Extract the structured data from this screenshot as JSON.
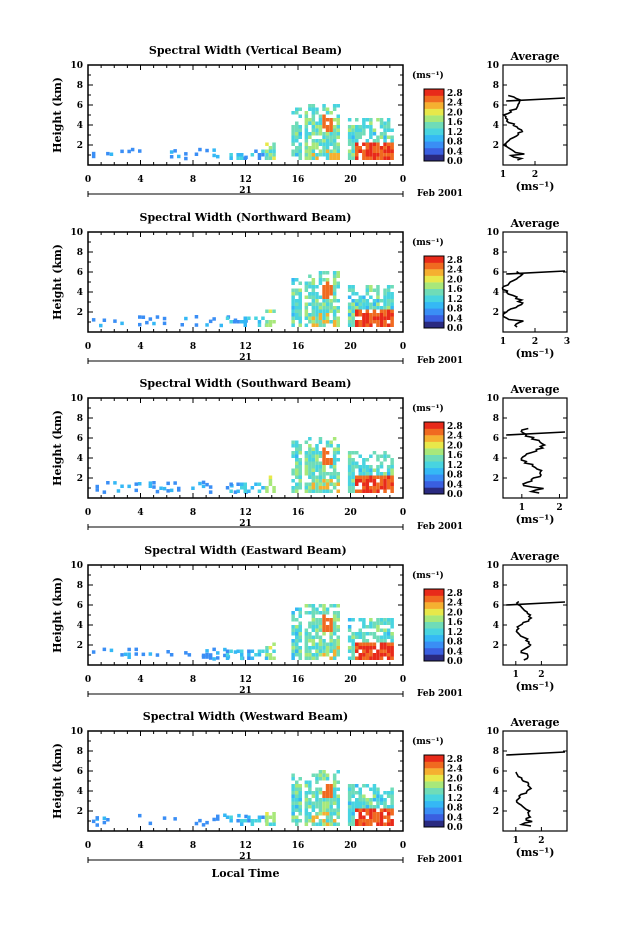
{
  "chart_data": [
    {
      "type": "heatmap",
      "title": "Spectral Width (Vertical Beam)",
      "ylabel": "Height (km)",
      "ylim": [
        0,
        10
      ],
      "xlim": [
        0,
        24
      ],
      "x_ticks": [
        "0",
        "4",
        "8",
        "12",
        "16",
        "20",
        "0"
      ],
      "y_ticks": [
        "2",
        "4",
        "6",
        "8",
        "10"
      ],
      "date_day": "21",
      "date_label": "Feb 2001",
      "colorbar_unit": "(ms⁻¹)",
      "colorbar_ticks": [
        "0.0",
        "0.4",
        "0.8",
        "1.2",
        "1.6",
        "2.0",
        "2.4",
        "2.8"
      ],
      "avg_title": "Average",
      "avg_xlabel": "(ms⁻¹)",
      "avg_xlim": [
        1,
        3
      ],
      "avg_x_ticks": [
        "1",
        "2"
      ],
      "avg_y_ticks": [
        "2",
        "4",
        "6",
        "8",
        "10"
      ]
    },
    {
      "type": "heatmap",
      "title": "Spectral Width (Northward Beam)",
      "ylabel": "Height (km)",
      "ylim": [
        0,
        10
      ],
      "xlim": [
        0,
        24
      ],
      "x_ticks": [
        "0",
        "4",
        "8",
        "12",
        "16",
        "20",
        "0"
      ],
      "y_ticks": [
        "2",
        "4",
        "6",
        "8",
        "10"
      ],
      "date_day": "21",
      "date_label": "Feb 2001",
      "colorbar_unit": "(ms⁻¹)",
      "colorbar_ticks": [
        "0.0",
        "0.4",
        "0.8",
        "1.2",
        "1.6",
        "2.0",
        "2.4",
        "2.8"
      ],
      "avg_title": "Average",
      "avg_xlabel": "(ms⁻¹)",
      "avg_xlim": [
        1,
        3
      ],
      "avg_x_ticks": [
        "1",
        "2",
        "3"
      ],
      "avg_y_ticks": [
        "2",
        "4",
        "6",
        "8",
        "10"
      ]
    },
    {
      "type": "heatmap",
      "title": "Spectral Width (Southward Beam)",
      "ylabel": "Height (km)",
      "ylim": [
        0,
        10
      ],
      "xlim": [
        0,
        24
      ],
      "x_ticks": [
        "0",
        "4",
        "8",
        "12",
        "16",
        "20",
        "0"
      ],
      "y_ticks": [
        "2",
        "4",
        "6",
        "8",
        "10"
      ],
      "date_day": "21",
      "date_label": "Feb 2001",
      "colorbar_unit": "(ms⁻¹)",
      "colorbar_ticks": [
        "0.0",
        "0.4",
        "0.8",
        "1.2",
        "1.6",
        "2.0",
        "2.4",
        "2.8"
      ],
      "avg_title": "Average",
      "avg_xlabel": "(ms⁻¹)",
      "avg_xlim": [
        0.5,
        2.2
      ],
      "avg_x_ticks": [
        "1",
        "2"
      ],
      "avg_y_ticks": [
        "2",
        "4",
        "6",
        "8",
        "10"
      ]
    },
    {
      "type": "heatmap",
      "title": "Spectral Width (Eastward Beam)",
      "ylabel": "Height (km)",
      "ylim": [
        0,
        10
      ],
      "xlim": [
        0,
        24
      ],
      "x_ticks": [
        "0",
        "4",
        "8",
        "12",
        "16",
        "20",
        "0"
      ],
      "y_ticks": [
        "2",
        "4",
        "6",
        "8",
        "10"
      ],
      "date_day": "21",
      "date_label": "Feb 2001",
      "colorbar_unit": "(ms⁻¹)",
      "colorbar_ticks": [
        "0.0",
        "0.4",
        "0.8",
        "1.2",
        "1.6",
        "2.0",
        "2.4",
        "2.8"
      ],
      "avg_title": "Average",
      "avg_xlabel": "(ms⁻¹)",
      "avg_xlim": [
        0.5,
        3
      ],
      "avg_x_ticks": [
        "1",
        "2"
      ],
      "avg_y_ticks": [
        "2",
        "4",
        "6",
        "8",
        "10"
      ]
    },
    {
      "type": "heatmap",
      "title": "Spectral Width (Westward Beam)",
      "ylabel": "Height (km)",
      "ylim": [
        0,
        10
      ],
      "xlim": [
        0,
        24
      ],
      "x_ticks": [
        "0",
        "4",
        "8",
        "12",
        "16",
        "20",
        "0"
      ],
      "y_ticks": [
        "2",
        "4",
        "6",
        "8",
        "10"
      ],
      "date_day": "21",
      "date_label": "Feb 2001",
      "colorbar_unit": "(ms⁻¹)",
      "colorbar_ticks": [
        "0.0",
        "0.4",
        "0.8",
        "1.2",
        "1.6",
        "2.0",
        "2.4",
        "2.8"
      ],
      "avg_title": "Average",
      "avg_xlabel": "(ms⁻¹)",
      "avg_xlim": [
        0.5,
        3
      ],
      "avg_x_ticks": [
        "1",
        "2"
      ],
      "avg_y_ticks": [
        "2",
        "4",
        "6",
        "8",
        "10"
      ],
      "xlabel": "Local Time"
    }
  ],
  "colormap": [
    "#2a2a80",
    "#3a5fe0",
    "#3a8ef5",
    "#35b8f5",
    "#48d4e0",
    "#6fdcb8",
    "#a8e87a",
    "#e8e84a",
    "#f5b030",
    "#f06a20",
    "#e82a1a"
  ]
}
